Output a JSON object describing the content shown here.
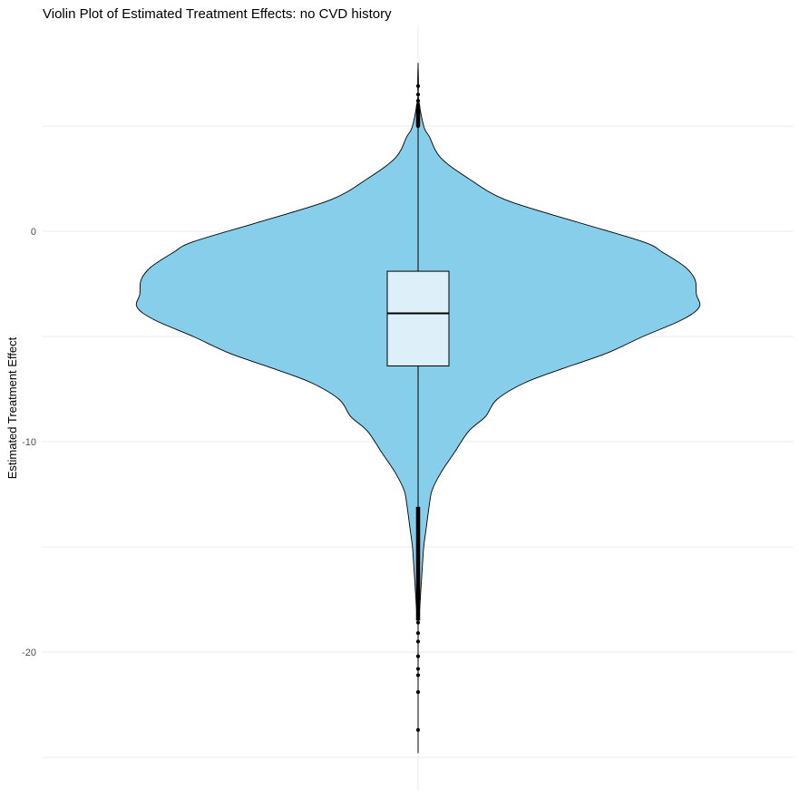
{
  "chart_data": {
    "type": "violin",
    "title": "Violin Plot of Estimated Treatment Effects: no CVD history",
    "xlabel": "",
    "ylabel": "Estimated Treatment Effect",
    "ylim": [
      -24.8,
      8.2
    ],
    "y_ticks": [
      0,
      -10,
      -20
    ],
    "y_tick_labels": [
      "0",
      "-10",
      "-20"
    ],
    "grid": true,
    "violin": {
      "fill_color": "#87CEEB",
      "outline_color": "#000000",
      "density_profile": [
        {
          "y": 8.0,
          "w": 0.0
        },
        {
          "y": 6.5,
          "w": 0.0
        },
        {
          "y": 5.0,
          "w": 0.02
        },
        {
          "y": 4.5,
          "w": 0.04
        },
        {
          "y": 3.5,
          "w": 0.08
        },
        {
          "y": 2.5,
          "w": 0.18
        },
        {
          "y": 1.5,
          "w": 0.31
        },
        {
          "y": 0.5,
          "w": 0.55
        },
        {
          "y": -0.5,
          "w": 0.8
        },
        {
          "y": -1.0,
          "w": 0.87
        },
        {
          "y": -1.7,
          "w": 0.95
        },
        {
          "y": -2.3,
          "w": 0.985
        },
        {
          "y": -3.0,
          "w": 0.99
        },
        {
          "y": -3.6,
          "w": 1.0
        },
        {
          "y": -4.2,
          "w": 0.94
        },
        {
          "y": -5.0,
          "w": 0.8
        },
        {
          "y": -5.8,
          "w": 0.67
        },
        {
          "y": -6.5,
          "w": 0.52
        },
        {
          "y": -7.2,
          "w": 0.38
        },
        {
          "y": -8.0,
          "w": 0.28
        },
        {
          "y": -8.8,
          "w": 0.24
        },
        {
          "y": -9.5,
          "w": 0.18
        },
        {
          "y": -10.5,
          "w": 0.13
        },
        {
          "y": -11.5,
          "w": 0.08
        },
        {
          "y": -12.3,
          "w": 0.05
        },
        {
          "y": -13.0,
          "w": 0.04
        },
        {
          "y": -14.0,
          "w": 0.03
        },
        {
          "y": -15.0,
          "w": 0.02
        },
        {
          "y": -16.0,
          "w": 0.015
        },
        {
          "y": -17.0,
          "w": 0.01
        },
        {
          "y": -18.0,
          "w": 0.005
        },
        {
          "y": -18.4,
          "w": 0.0
        }
      ]
    },
    "boxplot": {
      "fill_color": "#DDEFF8",
      "q1": -6.4,
      "median": -3.9,
      "q3": -1.9,
      "whisker_low": -13.1,
      "whisker_high": 4.9,
      "outliers": [
        5.0,
        5.2,
        5.3,
        5.4,
        5.5,
        5.6,
        5.7,
        5.8,
        6.0,
        6.2,
        6.5,
        6.9,
        -13.2,
        -13.4,
        -13.6,
        -13.8,
        -14.0,
        -14.3,
        -14.6,
        -14.9,
        -15.2,
        -15.5,
        -15.8,
        -16.1,
        -16.4,
        -16.7,
        -17.0,
        -17.3,
        -17.6,
        -17.9,
        -18.2,
        -18.6,
        -19.1,
        -19.5,
        -20.2,
        -20.8,
        -21.1,
        -21.9,
        -23.7
      ],
      "range_min": -24.8,
      "range_max": 8.0
    }
  }
}
